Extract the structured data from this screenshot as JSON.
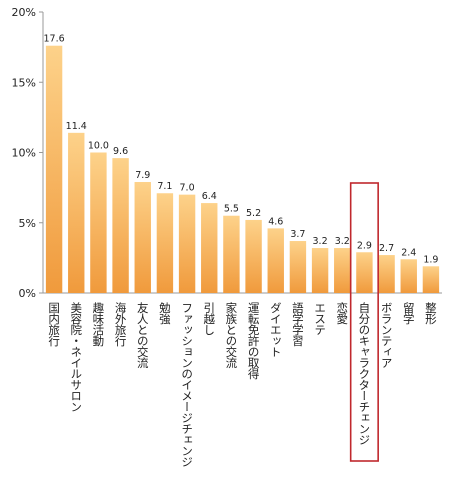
{
  "chart_data": {
    "type": "bar",
    "title": "",
    "xlabel": "",
    "ylabel": "",
    "ylim": [
      0,
      20
    ],
    "yticks": [
      0,
      5,
      10,
      15,
      20
    ],
    "ytick_labels": [
      "0%",
      "5%",
      "10%",
      "15%",
      "20%"
    ],
    "grid": false,
    "categories": [
      "国内旅行",
      "美容院・ネイルサロン",
      "趣味活動",
      "海外旅行",
      "友人との交流",
      "勉強",
      "ファッションのイメージチェンジ",
      "引越し",
      "家族との交流",
      "運転免許の取得",
      "ダイエット",
      "語学学習",
      "エステ",
      "恋愛",
      "自分のキャラクターチェンジ",
      "ボランティア",
      "留学",
      "整形"
    ],
    "values": [
      17.6,
      11.4,
      10.0,
      9.6,
      7.9,
      7.1,
      7.0,
      6.4,
      5.5,
      5.2,
      4.6,
      3.7,
      3.2,
      3.2,
      2.9,
      2.7,
      2.4,
      1.9
    ],
    "value_labels": [
      "17.6",
      "11.4",
      "10.0",
      "9.6",
      "7.9",
      "7.1",
      "7.0",
      "6.4",
      "5.5",
      "5.2",
      "4.6",
      "3.7",
      "3.2",
      "3.2",
      "2.9",
      "2.7",
      "2.4",
      "1.9"
    ],
    "highlighted_category": "自分のキャラクターチェンジ",
    "colors": {
      "bar_top": "#fdd28a",
      "bar_bottom": "#f09a3c",
      "highlight_box": "#c0282d"
    }
  }
}
